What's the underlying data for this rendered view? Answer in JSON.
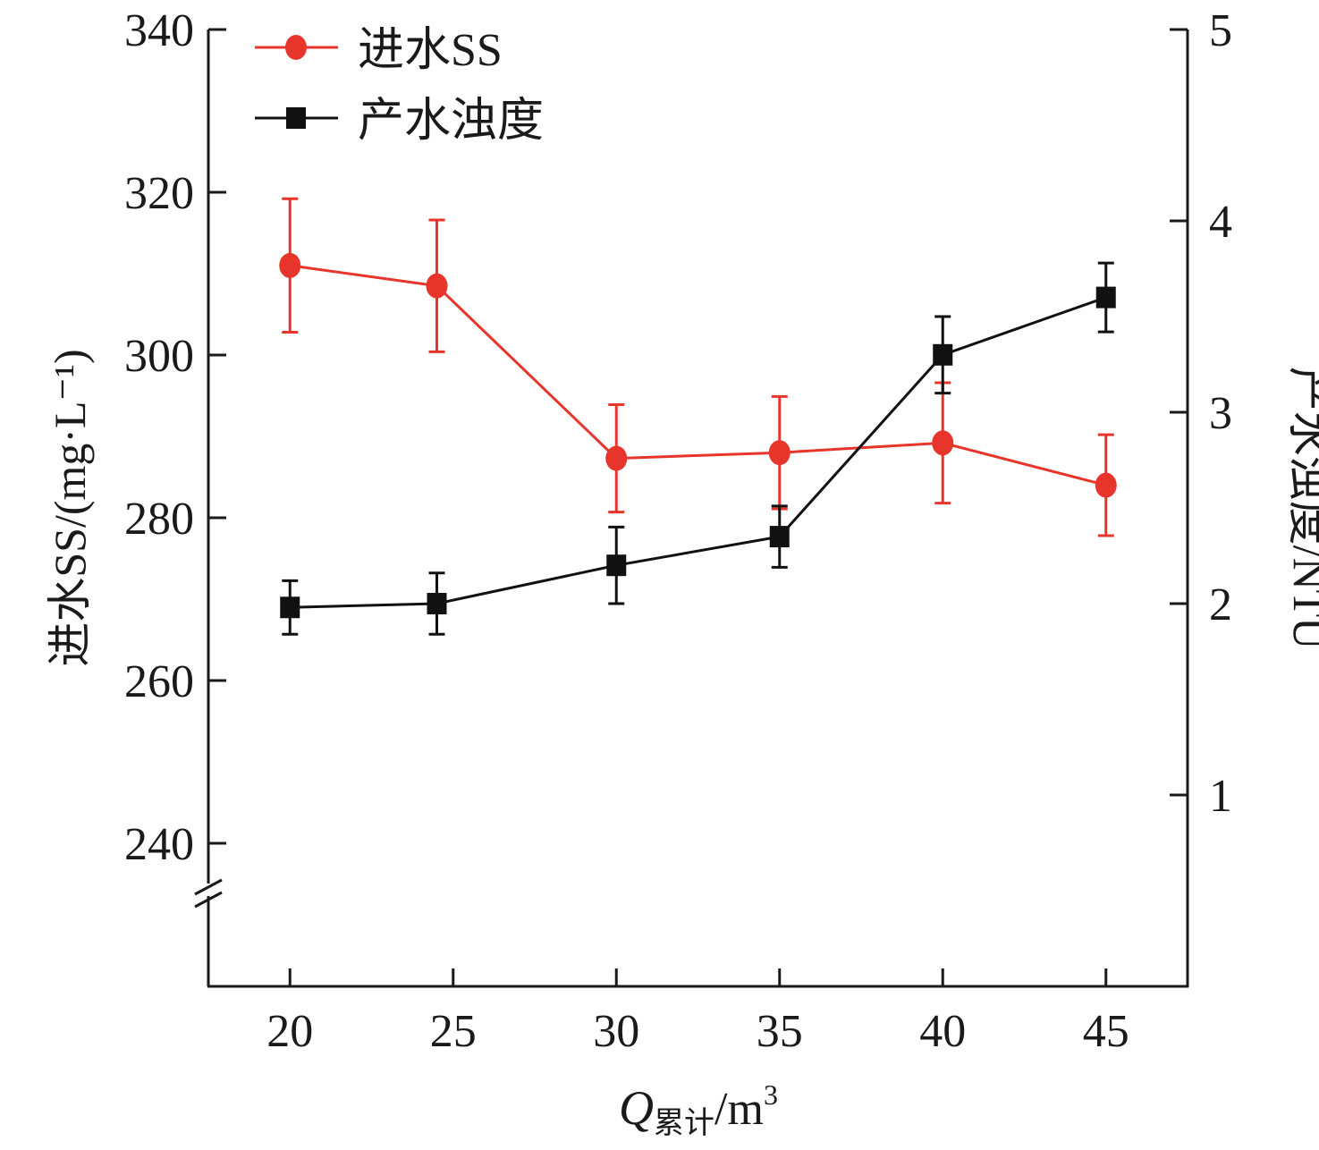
{
  "chart_data": {
    "type": "line",
    "x": [
      20,
      24.5,
      30,
      35,
      40,
      45
    ],
    "xlim": [
      17.5,
      47.5
    ],
    "xticks": [
      20,
      25,
      30,
      35,
      40,
      45
    ],
    "xlabel": {
      "main": "Q",
      "subscript": "累计",
      "unit": "/m",
      "superscript": "3"
    },
    "y_left": {
      "label": "进水SS/(mg·L⁻¹)",
      "lim": [
        240,
        340
      ],
      "ticks": [
        240,
        260,
        280,
        300,
        320,
        340
      ],
      "axis_break": true
    },
    "y_right": {
      "label": "产水浊度/NTU",
      "lim": [
        0,
        5
      ],
      "ticks": [
        1,
        2,
        3,
        4,
        5
      ]
    },
    "series": [
      {
        "name": "进水SS",
        "axis": "left",
        "color": "#e8352b",
        "marker": "circle",
        "values": [
          311.0,
          308.5,
          287.3,
          288.0,
          289.2,
          284.0
        ],
        "error": [
          8.2,
          8.1,
          6.6,
          6.9,
          7.4,
          6.2
        ]
      },
      {
        "name": "产水浊度",
        "axis": "right",
        "color": "#111111",
        "marker": "square",
        "values": [
          1.98,
          2.0,
          2.2,
          2.35,
          3.3,
          3.6
        ],
        "error": [
          0.14,
          0.16,
          0.2,
          0.16,
          0.2,
          0.18
        ]
      }
    ],
    "legend_position": "top-left"
  }
}
